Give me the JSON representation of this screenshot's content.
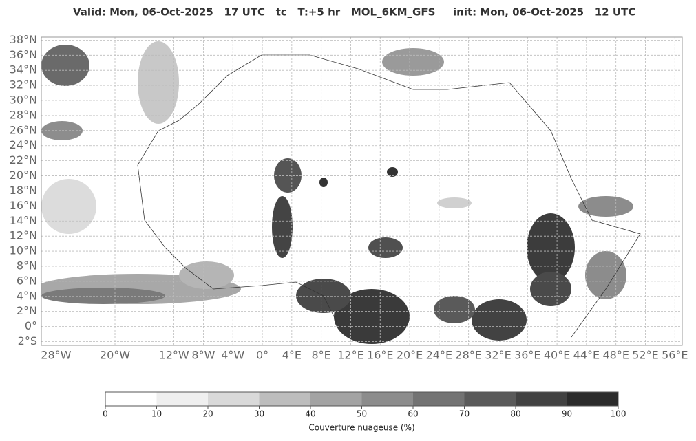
{
  "header": {
    "title_valid": "Valid: Mon, 06-Oct-2025   17 UTC   tc   T:+5 hr   MOL_6KM_GFS",
    "title_init": "init: Mon, 06-Oct-2025   12 UTC"
  },
  "map": {
    "lon_range": [
      -30,
      57
    ],
    "lat_range": [
      -2.5,
      38.4
    ],
    "lat_ticks": [
      {
        "value": 38,
        "label": "38°N"
      },
      {
        "value": 36,
        "label": "36°N"
      },
      {
        "value": 34,
        "label": "34°N"
      },
      {
        "value": 32,
        "label": "32°N"
      },
      {
        "value": 30,
        "label": "30°N"
      },
      {
        "value": 28,
        "label": "28°N"
      },
      {
        "value": 26,
        "label": "26°N"
      },
      {
        "value": 24,
        "label": "24°N"
      },
      {
        "value": 22,
        "label": "22°N"
      },
      {
        "value": 20,
        "label": "20°N"
      },
      {
        "value": 18,
        "label": "18°N"
      },
      {
        "value": 16,
        "label": "16°N"
      },
      {
        "value": 14,
        "label": "14°N"
      },
      {
        "value": 12,
        "label": "12°N"
      },
      {
        "value": 10,
        "label": "10°N"
      },
      {
        "value": 8,
        "label": "8°N"
      },
      {
        "value": 6,
        "label": "6°N"
      },
      {
        "value": 4,
        "label": "4°N"
      },
      {
        "value": 2,
        "label": "2°N"
      },
      {
        "value": 0,
        "label": "0°"
      },
      {
        "value": -2,
        "label": "2°S"
      }
    ],
    "lon_ticks": [
      {
        "value": -28,
        "label": "28°W"
      },
      {
        "value": -20,
        "label": "20°W"
      },
      {
        "value": -12,
        "label": "12°W"
      },
      {
        "value": -8,
        "label": "8°W"
      },
      {
        "value": -4,
        "label": "4°W"
      },
      {
        "value": 0,
        "label": "0°"
      },
      {
        "value": 4,
        "label": "4°E"
      },
      {
        "value": 8,
        "label": "8°E"
      },
      {
        "value": 12,
        "label": "12°E"
      },
      {
        "value": 16,
        "label": "16°E"
      },
      {
        "value": 20,
        "label": "20°E"
      },
      {
        "value": 24,
        "label": "24°E"
      },
      {
        "value": 28,
        "label": "28°E"
      },
      {
        "value": 32,
        "label": "32°E"
      },
      {
        "value": 36,
        "label": "36°E"
      },
      {
        "value": 40,
        "label": "40°E"
      },
      {
        "value": 44,
        "label": "44°E"
      },
      {
        "value": 48,
        "label": "48°E"
      },
      {
        "value": 52,
        "label": "52°E"
      },
      {
        "value": 56,
        "label": "56°E"
      }
    ]
  },
  "colorbar": {
    "ticks": [
      0,
      10,
      20,
      30,
      40,
      50,
      60,
      70,
      80,
      90,
      100
    ],
    "colors": [
      "#ffffff",
      "#efefef",
      "#d9d9d9",
      "#bdbdbd",
      "#a3a3a3",
      "#8c8c8c",
      "#737373",
      "#5a5a5a",
      "#424242",
      "#2b2b2b"
    ],
    "label": "Couverture nuageuse (%)"
  }
}
